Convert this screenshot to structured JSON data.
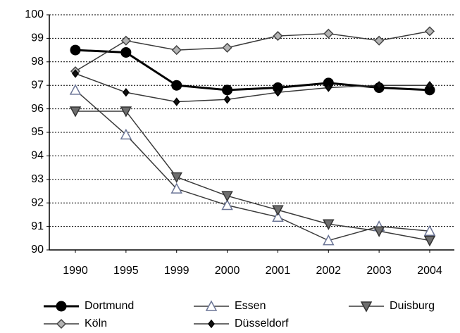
{
  "chart_data": {
    "type": "line",
    "categories": [
      "1990",
      "1995",
      "1999",
      "2000",
      "2001",
      "2002",
      "2003",
      "2004"
    ],
    "series": [
      {
        "name": "Dortmund",
        "color": "#000000",
        "marker": "circle",
        "marker_fill": "#000000",
        "values": [
          98.5,
          98.4,
          97.0,
          96.8,
          96.9,
          97.1,
          96.9,
          96.8
        ]
      },
      {
        "name": "Essen",
        "color": "#3a3a3a",
        "marker": "triangle-up",
        "marker_fill": "#ffffff",
        "marker_stroke": "#6b7596",
        "values": [
          96.8,
          94.9,
          92.6,
          91.9,
          91.4,
          90.4,
          91.0,
          90.8
        ]
      },
      {
        "name": "Duisburg",
        "color": "#3a3a3a",
        "marker": "triangle-down",
        "marker_fill": "#6e6e6e",
        "marker_stroke": "#333333",
        "values": [
          95.9,
          95.9,
          93.1,
          92.3,
          91.7,
          91.1,
          90.8,
          90.4
        ]
      },
      {
        "name": "Köln",
        "color": "#3a3a3a",
        "marker": "diamond",
        "marker_fill": "#b4b4b4",
        "marker_stroke": "#444444",
        "values": [
          97.6,
          98.9,
          98.5,
          98.6,
          99.1,
          99.2,
          98.9,
          99.3
        ]
      },
      {
        "name": "Düsseldorf",
        "color": "#3a3a3a",
        "marker": "small-diamond",
        "marker_fill": "#111111",
        "marker_stroke": "#000000",
        "values": [
          97.5,
          96.7,
          96.3,
          96.4,
          96.7,
          96.9,
          97.0,
          97.0
        ]
      }
    ],
    "ylim": [
      90,
      100
    ],
    "yticks": [
      90,
      91,
      92,
      93,
      94,
      95,
      96,
      97,
      98,
      99,
      100
    ],
    "grid": true,
    "legend": "bottom"
  }
}
